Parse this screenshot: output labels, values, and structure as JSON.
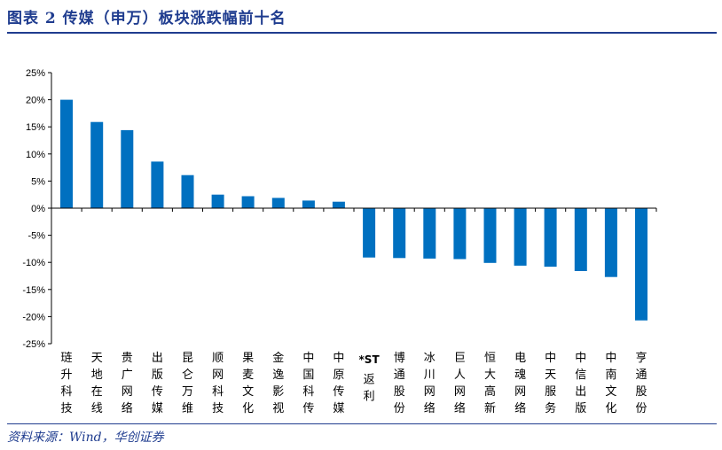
{
  "header": {
    "title": "图表 2   传媒（申万）板块涨跌幅前十名"
  },
  "footer": {
    "source": "资料来源：Wind，华创证券"
  },
  "colors": {
    "bar": "#0070c0",
    "heading": "#1f3c8f"
  },
  "chart_data": {
    "type": "bar",
    "title": "",
    "xlabel": "",
    "ylabel": "",
    "ylim": [
      -25,
      25
    ],
    "yticks": [
      25,
      20,
      15,
      10,
      5,
      0,
      -5,
      -10,
      -15,
      -20,
      -25
    ],
    "ytick_labels": [
      "25%",
      "20%",
      "15%",
      "10%",
      "5%",
      "0%",
      "-5%",
      "-10%",
      "-15%",
      "-20%",
      "-25%"
    ],
    "grid": false,
    "legend": "none",
    "categories": [
      "琏升科技",
      "天地在线",
      "贵广网络",
      "出版传媒",
      "昆仑万维",
      "顺网科技",
      "果麦文化",
      "金逸影视",
      "中国科传",
      "中原传媒",
      "*ST返利",
      "博通股份",
      "冰川网络",
      "巨人网络",
      "恒大高新",
      "电魂网络",
      "中天服务",
      "中信出版",
      "中南文化",
      "亨通股份"
    ],
    "values": [
      20.0,
      15.9,
      14.4,
      8.6,
      6.1,
      2.5,
      2.2,
      1.9,
      1.4,
      1.2,
      -9.1,
      -9.2,
      -9.3,
      -9.4,
      -10.1,
      -10.6,
      -10.8,
      -11.6,
      -12.7,
      -20.7
    ]
  }
}
